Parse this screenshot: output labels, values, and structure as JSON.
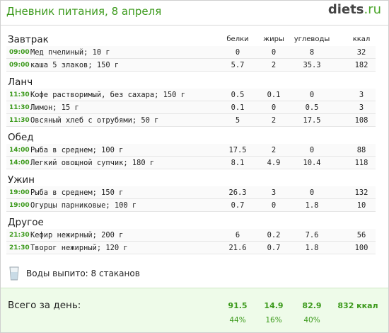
{
  "header": {
    "title": "Дневник питания, 8 апреля",
    "logo": {
      "name": "diets",
      "suffix": ".ru"
    }
  },
  "columns": [
    "белки",
    "жиры",
    "углеводы",
    "ккал"
  ],
  "meals": [
    {
      "name": "Завтрак",
      "items": [
        {
          "time": "09:00",
          "food": "Мед пчелиный; 10 г",
          "values": [
            "0",
            "0",
            "8",
            "32"
          ]
        },
        {
          "time": "09:00",
          "food": "каша 5 злаков; 150 г",
          "values": [
            "5.7",
            "2",
            "35.3",
            "182"
          ]
        }
      ]
    },
    {
      "name": "Ланч",
      "items": [
        {
          "time": "11:30",
          "food": "Кофе растворимый, без сахара; 150 г",
          "values": [
            "0.5",
            "0.1",
            "0",
            "3"
          ]
        },
        {
          "time": "11:30",
          "food": "Лимон; 15 г",
          "values": [
            "0.1",
            "0",
            "0.5",
            "3"
          ]
        },
        {
          "time": "11:30",
          "food": "Овсяный хлеб с отрубями; 50 г",
          "values": [
            "5",
            "2",
            "17.5",
            "108"
          ]
        }
      ]
    },
    {
      "name": "Обед",
      "items": [
        {
          "time": "14:00",
          "food": "Рыба в среднем; 100 г",
          "values": [
            "17.5",
            "2",
            "0",
            "88"
          ]
        },
        {
          "time": "14:00",
          "food": "Легкий овощной супчик; 180 г",
          "values": [
            "8.1",
            "4.9",
            "10.4",
            "118"
          ]
        }
      ]
    },
    {
      "name": "Ужин",
      "items": [
        {
          "time": "19:00",
          "food": "Рыба в среднем; 150 г",
          "values": [
            "26.3",
            "3",
            "0",
            "132"
          ]
        },
        {
          "time": "19:00",
          "food": "Огурцы парниковые; 100 г",
          "values": [
            "0.7",
            "0",
            "1.8",
            "10"
          ]
        }
      ]
    },
    {
      "name": "Другое",
      "items": [
        {
          "time": "21:30",
          "food": "Кефир нежирный; 200 г",
          "values": [
            "6",
            "0.2",
            "7.6",
            "56"
          ]
        },
        {
          "time": "21:30",
          "food": "Творог нежирный; 120 г",
          "values": [
            "21.6",
            "0.7",
            "1.8",
            "100"
          ]
        }
      ]
    }
  ],
  "water": "Воды выпито: 8 стаканов",
  "totals": {
    "label": "Всего за день:",
    "values": [
      "91.5",
      "14.9",
      "82.9",
      "832 ккал"
    ],
    "percents": [
      "44%",
      "16%",
      "40%"
    ]
  }
}
